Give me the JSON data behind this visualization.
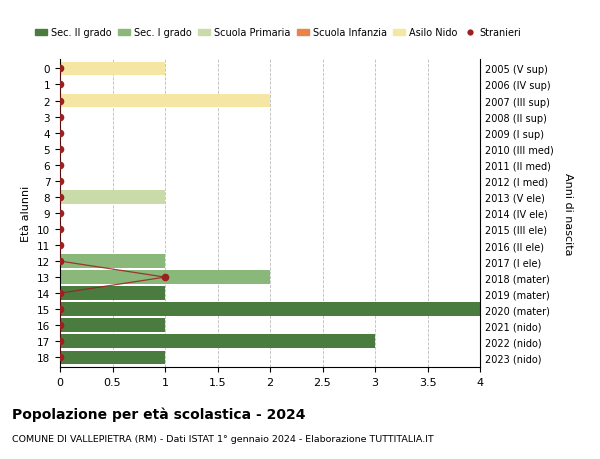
{
  "ages": [
    18,
    17,
    16,
    15,
    14,
    13,
    12,
    11,
    10,
    9,
    8,
    7,
    6,
    5,
    4,
    3,
    2,
    1,
    0
  ],
  "right_labels": [
    "2005 (V sup)",
    "2006 (IV sup)",
    "2007 (III sup)",
    "2008 (II sup)",
    "2009 (I sup)",
    "2010 (III med)",
    "2011 (II med)",
    "2012 (I med)",
    "2013 (V ele)",
    "2014 (IV ele)",
    "2015 (III ele)",
    "2016 (II ele)",
    "2017 (I ele)",
    "2018 (mater)",
    "2019 (mater)",
    "2020 (mater)",
    "2021 (nido)",
    "2022 (nido)",
    "2023 (nido)"
  ],
  "bar_data": [
    {
      "age": 18,
      "value": 1,
      "color": "#4a7c3f"
    },
    {
      "age": 17,
      "value": 3,
      "color": "#4a7c3f"
    },
    {
      "age": 16,
      "value": 1,
      "color": "#4a7c3f"
    },
    {
      "age": 15,
      "value": 4,
      "color": "#4a7c3f"
    },
    {
      "age": 14,
      "value": 1,
      "color": "#4a7c3f"
    },
    {
      "age": 13,
      "value": 2,
      "color": "#8ab87a"
    },
    {
      "age": 12,
      "value": 1,
      "color": "#8ab87a"
    },
    {
      "age": 8,
      "value": 1,
      "color": "#c8dba8"
    },
    {
      "age": 2,
      "value": 2,
      "color": "#f5e6a3"
    },
    {
      "age": 0,
      "value": 1,
      "color": "#f5e6a3"
    }
  ],
  "stranieri_values": {
    "18": 0,
    "17": 0,
    "16": 0,
    "15": 0,
    "14": 0,
    "13": 1,
    "12": 0,
    "11": 0,
    "10": 0,
    "9": 0,
    "8": 0,
    "7": 0,
    "6": 0,
    "5": 0,
    "4": 0,
    "3": 0,
    "2": 0,
    "1": 0,
    "0": 0
  },
  "colors": {
    "sec2": "#4a7c3f",
    "sec1": "#8ab87a",
    "primaria": "#c8dba8",
    "infanzia": "#e8834a",
    "nido": "#f5e6a3",
    "stranieri": "#9b2020"
  },
  "legend_labels": [
    "Sec. II grado",
    "Sec. I grado",
    "Scuola Primaria",
    "Scuola Infanzia",
    "Asilo Nido",
    "Stranieri"
  ],
  "legend_colors": [
    "#4a7c3f",
    "#8ab87a",
    "#c8dba8",
    "#e8834a",
    "#f5e6a3",
    "#9b2020"
  ],
  "ylabel_left": "Età alunni",
  "ylabel_right": "Anni di nascita",
  "title": "Popolazione per età scolastica - 2024",
  "subtitle": "COMUNE DI VALLEPIETRA (RM) - Dati ISTAT 1° gennaio 2024 - Elaborazione TUTTITALIA.IT",
  "xlim": [
    0,
    4.0
  ],
  "xticks": [
    0,
    0.5,
    1.0,
    1.5,
    2.0,
    2.5,
    3.0,
    3.5,
    4.0
  ],
  "background_color": "#ffffff",
  "grid_color": "#bbbbbb"
}
